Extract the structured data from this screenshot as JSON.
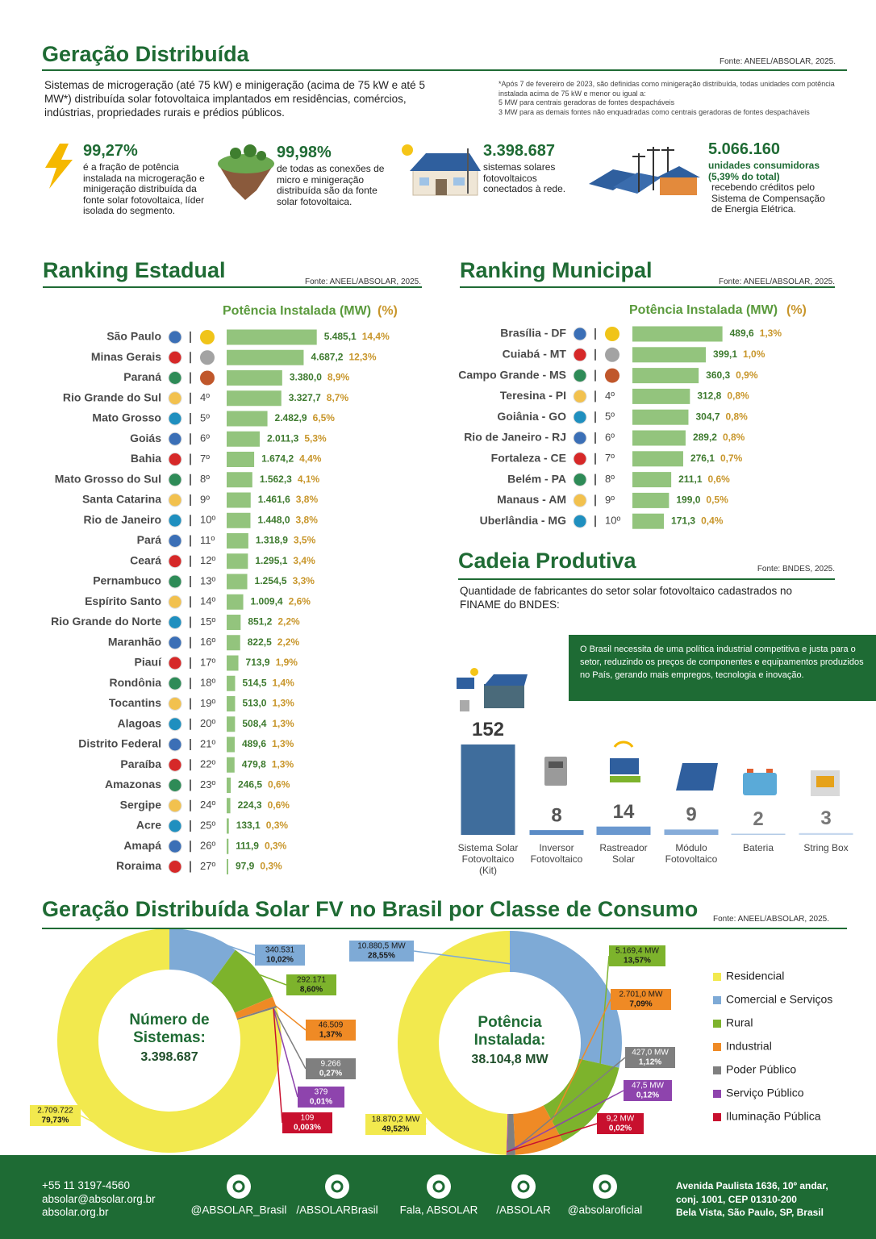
{
  "header": {
    "title": "Geração Distribuída",
    "source": "Fonte: ANEEL/ABSOLAR, 2025.",
    "description": "Sistemas de microgeração (até 75 kW) e minigeração (acima de 75 kW e até 5 MW*) distribuída solar fotovoltaica implantados em residências, comércios, indústrias, propriedades rurais e prédios públicos.",
    "footnote": [
      "*Após 7 de fevereiro de 2023, são definidas como minigeração distribuída, todas unidades com potência instalada acima de 75 kW e menor ou igual a:",
      "5 MW para centrais geradoras de fontes despacháveis",
      "3 MW para as demais fontes não enquadradas como centrais geradoras de fontes despacháveis"
    ]
  },
  "stats": [
    {
      "value": "99,27%",
      "text": "é a fração de potência instalada na microgeração e minigeração distribuída da fonte solar fotovoltaica, líder isolada do segmento."
    },
    {
      "value": "99,98%",
      "text": "de todas as conexões de micro e minigeração distribuída são da fonte solar fotovoltaica."
    },
    {
      "value": "3.398.687",
      "text": "sistemas solares fotovoltaicos conectados à rede."
    },
    {
      "value": "5.066.160",
      "highlight": "unidades consumidoras (5,39% do total)",
      "text": "recebendo créditos pelo Sistema de Compensação de Energia Elétrica."
    }
  ],
  "chart_data": [
    {
      "type": "bar",
      "orientation": "horizontal",
      "title": "Ranking Estadual",
      "source": "Fonte: ANEEL/ABSOLAR, 2025.",
      "categories": [
        "São Paulo",
        "Minas Gerais",
        "Paraná",
        "Rio Grande do Sul",
        "Mato Grosso",
        "Goiás",
        "Bahia",
        "Mato Grosso do Sul",
        "Santa Catarina",
        "Rio de Janeiro",
        "Pará",
        "Ceará",
        "Pernambuco",
        "Espírito Santo",
        "Rio Grande do Norte",
        "Maranhão",
        "Piauí",
        "Rondônia",
        "Tocantins",
        "Alagoas",
        "Distrito Federal",
        "Paraíba",
        "Amazonas",
        "Sergipe",
        "Acre",
        "Amapá",
        "Roraima"
      ],
      "ranks": [
        null,
        null,
        null,
        "4º",
        "5º",
        "6º",
        "7º",
        "8º",
        "9º",
        "10º",
        "11º",
        "12º",
        "13º",
        "14º",
        "15º",
        "16º",
        "17º",
        "18º",
        "19º",
        "20º",
        "21º",
        "22º",
        "23º",
        "24º",
        "25º",
        "26º",
        "27º"
      ],
      "xlim": [
        0,
        5500
      ],
      "series": [
        {
          "name": "Potência Instalada (MW)",
          "color": "#93c47d",
          "values": [
            5485.1,
            4687.2,
            3380.0,
            3327.7,
            2482.9,
            2011.3,
            1674.2,
            1562.3,
            1461.6,
            1448.0,
            1318.9,
            1295.1,
            1254.5,
            1009.4,
            851.2,
            822.5,
            713.9,
            514.5,
            513.0,
            508.4,
            489.6,
            479.8,
            246.5,
            224.3,
            133.1,
            111.9,
            97.9
          ],
          "value_labels": [
            "5.485,1",
            "4.687,2",
            "3.380,0",
            "3.327,7",
            "2.482,9",
            "2.011,3",
            "1.674,2",
            "1.562,3",
            "1.461,6",
            "1.448,0",
            "1.318,9",
            "1.295,1",
            "1.254,5",
            "1.009,4",
            "851,2",
            "822,5",
            "713,9",
            "514,5",
            "513,0",
            "508,4",
            "489,6",
            "479,8",
            "246,5",
            "224,3",
            "133,1",
            "111,9",
            "97,9"
          ]
        },
        {
          "name": "(%)",
          "color": "#c8962b",
          "values": [
            14.4,
            12.3,
            8.9,
            8.7,
            6.5,
            5.3,
            4.4,
            4.1,
            3.8,
            3.8,
            3.5,
            3.4,
            3.3,
            2.6,
            2.2,
            2.2,
            1.9,
            1.4,
            1.3,
            1.3,
            1.3,
            1.3,
            0.6,
            0.6,
            0.3,
            0.3,
            0.3
          ],
          "value_labels": [
            "14,4%",
            "12,3%",
            "8,9%",
            "8,7%",
            "6,5%",
            "5,3%",
            "4,4%",
            "4,1%",
            "3,8%",
            "3,8%",
            "3,5%",
            "3,4%",
            "3,3%",
            "2,6%",
            "2,2%",
            "2,2%",
            "1,9%",
            "1,4%",
            "1,3%",
            "1,3%",
            "1,3%",
            "1,3%",
            "0,6%",
            "0,6%",
            "0,3%",
            "0,3%",
            "0,3%"
          ]
        }
      ]
    },
    {
      "type": "bar",
      "orientation": "horizontal",
      "title": "Ranking Municipal",
      "source": "Fonte: ANEEL/ABSOLAR, 2025.",
      "categories": [
        "Brasília - DF",
        "Cuiabá - MT",
        "Campo Grande - MS",
        "Teresina - PI",
        "Goiânia - GO",
        "Rio de Janeiro - RJ",
        "Fortaleza - CE",
        "Belém - PA",
        "Manaus - AM",
        "Uberlândia - MG"
      ],
      "ranks": [
        null,
        null,
        null,
        "4º",
        "5º",
        "6º",
        "7º",
        "8º",
        "9º",
        "10º"
      ],
      "xlim": [
        0,
        500
      ],
      "series": [
        {
          "name": "Potência Instalada (MW)",
          "color": "#93c47d",
          "values": [
            489.6,
            399.1,
            360.3,
            312.8,
            304.7,
            289.2,
            276.1,
            211.1,
            199.0,
            171.3
          ],
          "value_labels": [
            "489,6",
            "399,1",
            "360,3",
            "312,8",
            "304,7",
            "289,2",
            "276,1",
            "211,1",
            "199,0",
            "171,3"
          ]
        },
        {
          "name": "(%)",
          "color": "#c8962b",
          "values": [
            1.3,
            1.0,
            0.9,
            0.8,
            0.8,
            0.8,
            0.7,
            0.6,
            0.5,
            0.4
          ],
          "value_labels": [
            "1,3%",
            "1,0%",
            "0,9%",
            "0,8%",
            "0,8%",
            "0,8%",
            "0,7%",
            "0,6%",
            "0,5%",
            "0,4%"
          ]
        }
      ]
    },
    {
      "type": "bar",
      "orientation": "vertical",
      "title": "Cadeia Produtiva",
      "source": "Fonte: BNDES, 2025.",
      "subtitle": "Quantidade de fabricantes do setor solar fotovoltaico cadastrados no FINAME do BNDES:",
      "note": "O Brasil necessita de uma política industrial competitiva e justa para o setor, reduzindo os preços de componentes e equipamentos produzidos no País, gerando mais empregos, tecnologia e inovação.",
      "categories": [
        "Sistema Solar Fotovoltaico (Kit)",
        "Inversor Fotovoltaico",
        "Rastreador Solar",
        "Módulo Fotovoltaico",
        "Bateria",
        "String Box"
      ],
      "values": [
        152,
        8,
        14,
        9,
        2,
        3
      ],
      "colors": [
        "#3f6d9c",
        "#5b8cc6",
        "#6a98cf",
        "#86acd9",
        "#b3cae6",
        "#c6d8ee"
      ],
      "ylim": [
        0,
        160
      ]
    },
    {
      "type": "pie",
      "title": "Número de Sistemas:",
      "total_label": "3.398.687",
      "categories": [
        "Residencial",
        "Comercial e Serviços",
        "Rural",
        "Industrial",
        "Poder Público",
        "Serviço Público",
        "Iluminação Pública"
      ],
      "colors": [
        "#f2e94e",
        "#7eaad6",
        "#7db32c",
        "#ef8a25",
        "#7f7f7f",
        "#8e44ad",
        "#c8102e"
      ],
      "values": [
        2709722,
        340531,
        292171,
        46509,
        9266,
        379,
        109
      ],
      "value_labels": [
        "2.709.722",
        "340.531",
        "292.171",
        "46.509",
        "9.266",
        "379",
        "109"
      ],
      "percents": [
        79.73,
        10.02,
        8.6,
        1.37,
        0.27,
        0.01,
        0.003
      ],
      "percent_labels": [
        "79,73%",
        "10,02%",
        "8,60%",
        "1,37%",
        "0,27%",
        "0,01%",
        "0,003%"
      ]
    },
    {
      "type": "pie",
      "title": "Potência Instalada:",
      "total_label": "38.104,8 MW",
      "colors": [
        "#f2e94e",
        "#7eaad6",
        "#7db32c",
        "#ef8a25",
        "#7f7f7f",
        "#8e44ad",
        "#c8102e"
      ],
      "values": [
        18870.2,
        10880.5,
        5169.4,
        2701.0,
        427.0,
        47.5,
        9.2
      ],
      "value_labels": [
        "18.870,2 MW",
        "10.880,5 MW",
        "5.169,4 MW",
        "2.701,0 MW",
        "427,0 MW",
        "47,5 MW",
        "9,2 MW"
      ],
      "percents": [
        49.52,
        28.55,
        13.57,
        7.09,
        1.12,
        0.12,
        0.02
      ],
      "percent_labels": [
        "49,52%",
        "28,55%",
        "13,57%",
        "7,09%",
        "1,12%",
        "0,12%",
        "0,02%"
      ]
    }
  ],
  "consumption_section": {
    "title": "Geração Distribuída Solar FV no Brasil por Classe de Consumo",
    "source": "Fonte: ANEEL/ABSOLAR, 2025."
  },
  "footer": {
    "contacts": [
      "+55 11 3197-4560",
      "absolar@absolar.org.br",
      "absolar.org.br"
    ],
    "social": [
      "@ABSOLAR_Brasil",
      "/ABSOLARBrasil",
      "Fala, ABSOLAR",
      "/ABSOLAR",
      "@absolaroficial"
    ],
    "address": [
      "Avenida Paulista 1636, 10º andar,",
      "conj. 1001, CEP 01310-200",
      "Bela Vista, São Paulo, SP, Brasil"
    ]
  }
}
